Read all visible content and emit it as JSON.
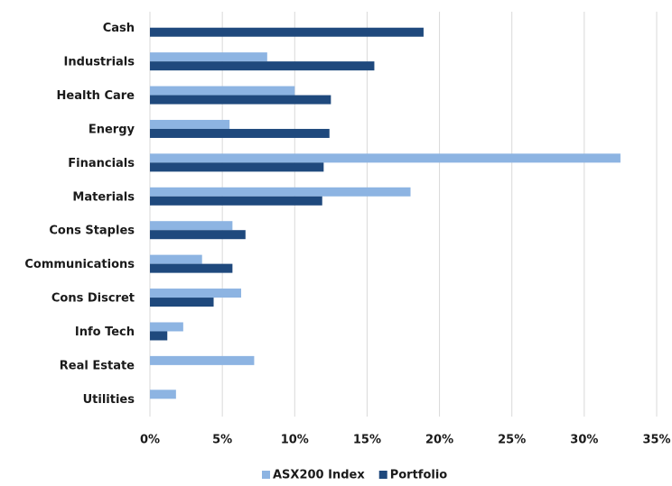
{
  "chart_data": {
    "type": "bar",
    "orientation": "horizontal",
    "categories": [
      "Cash",
      "Industrials",
      "Health Care",
      "Energy",
      "Financials",
      "Materials",
      "Cons Staples",
      "Communications",
      "Cons Discret",
      "Info Tech",
      "Real Estate",
      "Utilities"
    ],
    "series": [
      {
        "name": "ASX200 Index",
        "color": "#8db4e2",
        "values": [
          0,
          8.1,
          10.0,
          5.5,
          32.5,
          18.0,
          5.7,
          3.6,
          6.3,
          2.3,
          7.2,
          1.8
        ]
      },
      {
        "name": "Portfolio",
        "color": "#1f497d",
        "values": [
          18.9,
          15.5,
          12.5,
          12.4,
          12.0,
          11.9,
          6.6,
          5.7,
          4.4,
          1.2,
          0,
          0
        ]
      }
    ],
    "xlim": [
      0,
      35
    ],
    "xticks": [
      {
        "value": 0,
        "label": "0%"
      },
      {
        "value": 5,
        "label": "5%"
      },
      {
        "value": 10,
        "label": "10%"
      },
      {
        "value": 15,
        "label": "15%"
      },
      {
        "value": 20,
        "label": "20%"
      },
      {
        "value": 25,
        "label": "25%"
      },
      {
        "value": 30,
        "label": "30%"
      },
      {
        "value": 35,
        "label": "35%"
      }
    ],
    "grid": true,
    "legend": "bottom"
  }
}
